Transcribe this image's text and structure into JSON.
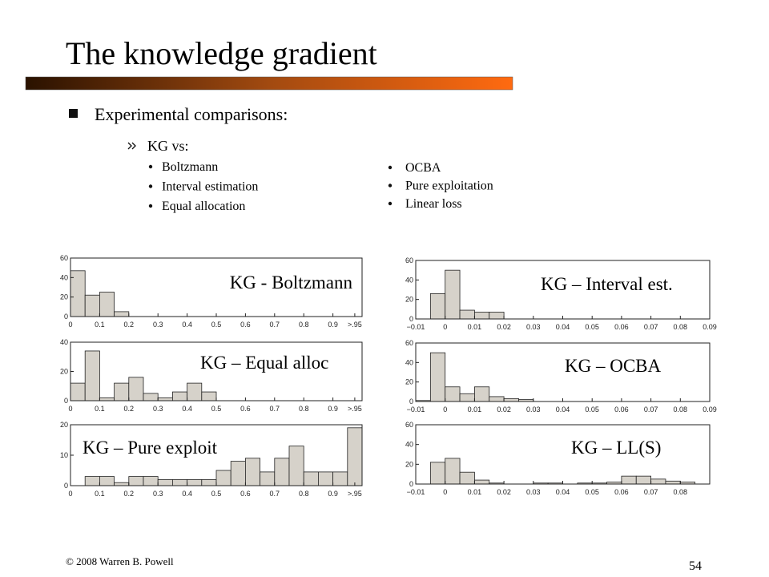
{
  "title": "The knowledge gradient",
  "main_point": "Experimental comparisons:",
  "sub_point": "KG vs:",
  "list_left": [
    "Boltzmann",
    "Interval estimation",
    "Equal allocation"
  ],
  "list_right": [
    "OCBA",
    "Pure exploitation",
    "Linear loss"
  ],
  "footer": "© 2008 Warren B. Powell",
  "page_number": "54",
  "chart_data": [
    {
      "type": "histogram",
      "title": "KG - Boltzmann",
      "color": "#d6d2ca",
      "bins": [
        0,
        0.05,
        0.1,
        0.15,
        0.2,
        0.25,
        0.3,
        0.35,
        0.4,
        0.45,
        0.5,
        0.55,
        0.6,
        0.65,
        0.7,
        0.75,
        0.8,
        0.85,
        0.9,
        0.95,
        1.0
      ],
      "values": [
        47,
        22,
        25,
        5,
        0,
        0,
        0,
        0,
        0,
        0,
        0,
        0,
        0,
        0,
        0,
        0,
        0,
        0,
        0,
        0
      ],
      "xlim": [
        0,
        1.0
      ],
      "ylim": [
        0,
        60
      ],
      "xticks": [
        0,
        0.1,
        0.2,
        0.3,
        0.4,
        0.5,
        0.6,
        0.7,
        0.8,
        0.9,
        {
          "value": 0.975,
          "label": ">.95"
        }
      ],
      "yticks": [
        0,
        20,
        40,
        60
      ]
    },
    {
      "type": "histogram",
      "title": "KG – Interval est.",
      "color": "#d6d2ca",
      "bins": [
        -0.01,
        -0.005,
        0,
        0.005,
        0.01,
        0.015,
        0.02,
        0.025,
        0.03,
        0.035,
        0.04,
        0.045,
        0.05,
        0.055,
        0.06,
        0.065,
        0.07,
        0.075,
        0.08,
        0.085,
        0.09
      ],
      "values": [
        0,
        26,
        50,
        9,
        7,
        7,
        0,
        0,
        0,
        0,
        0,
        0,
        0,
        0,
        0,
        0,
        0,
        0,
        0,
        0
      ],
      "xlim": [
        -0.01,
        0.09
      ],
      "ylim": [
        0,
        60
      ],
      "xticks": [
        {
          "value": -0.01,
          "label": "−0.01"
        },
        0,
        0.01,
        0.02,
        0.03,
        0.04,
        0.05,
        0.06,
        0.07,
        0.08,
        0.09
      ],
      "yticks": [
        0,
        20,
        40,
        60
      ]
    },
    {
      "type": "histogram",
      "title": "KG – Equal alloc",
      "color": "#d6d2ca",
      "bins": [
        0,
        0.05,
        0.1,
        0.15,
        0.2,
        0.25,
        0.3,
        0.35,
        0.4,
        0.45,
        0.5,
        0.55,
        0.6,
        0.65,
        0.7,
        0.75,
        0.8,
        0.85,
        0.9,
        0.95,
        1.0
      ],
      "values": [
        12,
        34,
        2,
        12,
        16,
        5,
        2,
        6,
        12,
        6,
        0,
        0,
        0,
        0,
        0,
        0,
        0,
        0,
        0,
        0
      ],
      "xlim": [
        0,
        1.0
      ],
      "ylim": [
        0,
        40
      ],
      "xticks": [
        0,
        0.1,
        0.2,
        0.3,
        0.4,
        0.5,
        0.6,
        0.7,
        0.8,
        0.9,
        {
          "value": 0.975,
          "label": ">.95"
        }
      ],
      "yticks": [
        0,
        20,
        40
      ]
    },
    {
      "type": "histogram",
      "title": "KG – OCBA",
      "color": "#d6d2ca",
      "bins": [
        -0.01,
        -0.005,
        0,
        0.005,
        0.01,
        0.015,
        0.02,
        0.025,
        0.03,
        0.035,
        0.04,
        0.045,
        0.05,
        0.055,
        0.06,
        0.065,
        0.07,
        0.075,
        0.08,
        0.085,
        0.09
      ],
      "values": [
        1,
        50,
        15,
        8,
        15,
        5,
        3,
        2,
        0,
        0,
        0,
        0,
        0,
        0,
        0,
        0,
        0,
        0,
        0,
        0
      ],
      "xlim": [
        -0.01,
        0.09
      ],
      "ylim": [
        0,
        60
      ],
      "xticks": [
        {
          "value": -0.01,
          "label": "−0.01"
        },
        0,
        0.01,
        0.02,
        0.03,
        0.04,
        0.05,
        0.06,
        0.07,
        0.08,
        0.09
      ],
      "yticks": [
        0,
        20,
        40,
        60
      ]
    },
    {
      "type": "histogram",
      "title": "KG – Pure exploit",
      "color": "#d6d2ca",
      "bins": [
        0,
        0.05,
        0.1,
        0.15,
        0.2,
        0.25,
        0.3,
        0.35,
        0.4,
        0.45,
        0.5,
        0.55,
        0.6,
        0.65,
        0.7,
        0.75,
        0.8,
        0.85,
        0.9,
        0.95,
        1.0
      ],
      "values": [
        0,
        3,
        3,
        1,
        3,
        3,
        2,
        2,
        2,
        2,
        5,
        8,
        9,
        4.5,
        9,
        13,
        4.5,
        4.5,
        4.5,
        19
      ],
      "xlim": [
        0,
        1.0
      ],
      "ylim": [
        0,
        20
      ],
      "xticks": [
        0,
        0.1,
        0.2,
        0.3,
        0.4,
        0.5,
        0.6,
        0.7,
        0.8,
        0.9,
        {
          "value": 0.975,
          "label": ">.95"
        }
      ],
      "yticks": [
        0,
        10,
        20
      ]
    },
    {
      "type": "histogram",
      "title": "KG – LL(S)",
      "color": "#d6d2ca",
      "bins": [
        -0.01,
        -0.005,
        0,
        0.005,
        0.01,
        0.015,
        0.02,
        0.025,
        0.03,
        0.035,
        0.04,
        0.045,
        0.05,
        0.055,
        0.06,
        0.065,
        0.07,
        0.075,
        0.08,
        0.085,
        0.09
      ],
      "values": [
        0,
        22,
        26,
        12,
        4,
        1,
        0,
        0,
        1,
        1,
        0,
        1,
        1,
        2,
        8,
        8,
        5,
        3,
        2,
        0
      ],
      "xlim": [
        -0.01,
        0.09
      ],
      "ylim": [
        0,
        60
      ],
      "xticks": [
        {
          "value": -0.01,
          "label": "−0.01"
        },
        0,
        0.01,
        0.02,
        0.03,
        0.04,
        0.05,
        0.06,
        0.07,
        0.08
      ],
      "yticks": [
        0,
        20,
        40,
        60
      ]
    }
  ]
}
